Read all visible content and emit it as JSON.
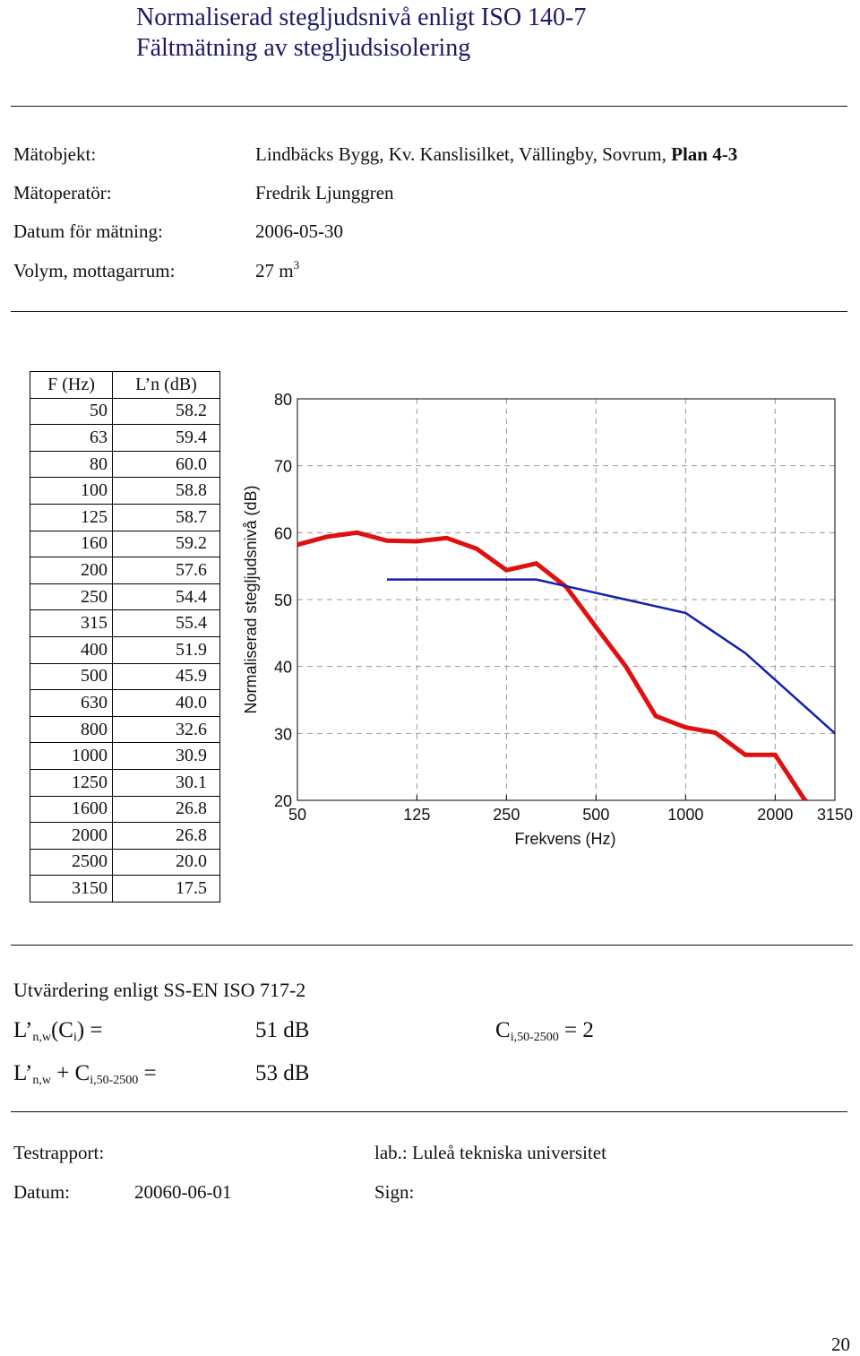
{
  "header": {
    "title_line1": "Normaliserad stegljudsnivå enligt ISO 140-7",
    "title_line2": "Fältmätning av stegljudsisolering"
  },
  "info": {
    "object_label": "Mätobjekt:",
    "object_value": "Lindbäcks Bygg, Kv. Kanslisilket, Vällingby, Sovrum,",
    "object_value_bold": "Plan 4-3",
    "operator_label": "Mätoperatör:",
    "operator_value": "Fredrik Ljunggren",
    "date_label": "Datum för mätning:",
    "date_value": "2006-05-30",
    "volume_label": "Volym, mottagarrum:",
    "volume_value": "27 m",
    "volume_exp": "3"
  },
  "table": {
    "col_freq": "F (Hz)",
    "col_level": "L’n (dB)",
    "rows": [
      {
        "f": "50",
        "l": "58.2"
      },
      {
        "f": "63",
        "l": "59.4"
      },
      {
        "f": "80",
        "l": "60.0"
      },
      {
        "f": "100",
        "l": "58.8"
      },
      {
        "f": "125",
        "l": "58.7"
      },
      {
        "f": "160",
        "l": "59.2"
      },
      {
        "f": "200",
        "l": "57.6"
      },
      {
        "f": "250",
        "l": "54.4"
      },
      {
        "f": "315",
        "l": "55.4"
      },
      {
        "f": "400",
        "l": "51.9"
      },
      {
        "f": "500",
        "l": "45.9"
      },
      {
        "f": "630",
        "l": "40.0"
      },
      {
        "f": "800",
        "l": "32.6"
      },
      {
        "f": "1000",
        "l": "30.9"
      },
      {
        "f": "1250",
        "l": "30.1"
      },
      {
        "f": "1600",
        "l": "26.8"
      },
      {
        "f": "2000",
        "l": "26.8"
      },
      {
        "f": "2500",
        "l": "20.0"
      },
      {
        "f": "3150",
        "l": "17.5"
      }
    ]
  },
  "chart_data": {
    "type": "line",
    "title": "",
    "xlabel": "Frekvens (Hz)",
    "ylabel": "Normaliserad stegljudsnivå (dB)",
    "x_categories": [
      "50",
      "63",
      "80",
      "100",
      "125",
      "160",
      "200",
      "250",
      "315",
      "400",
      "500",
      "630",
      "800",
      "1000",
      "1250",
      "1600",
      "2000",
      "2500",
      "3150"
    ],
    "x_tick_labels": [
      "50",
      "125",
      "250",
      "500",
      "1000",
      "2000",
      "3150"
    ],
    "y_ticks": [
      "20",
      "30",
      "40",
      "50",
      "60",
      "70",
      "80"
    ],
    "ylim": [
      20,
      80
    ],
    "grid": true,
    "series": [
      {
        "color": "#e01010",
        "values": [
          58.2,
          59.4,
          60.0,
          58.8,
          58.7,
          59.2,
          57.6,
          54.4,
          55.4,
          51.9,
          45.9,
          40.0,
          32.6,
          30.9,
          30.1,
          26.8,
          26.8,
          20.0,
          17.5
        ]
      },
      {
        "color": "#1020b0",
        "x_start_index": 3,
        "values": [
          53,
          53,
          53,
          53,
          53,
          53,
          52,
          51,
          50,
          49,
          48,
          45,
          42,
          38,
          34,
          30
        ]
      }
    ]
  },
  "evaluation": {
    "heading": "Utvärdering enligt SS-EN ISO 717-2",
    "row1_label_main": "L’",
    "row1_label_sub": "n,w",
    "row1_label_rest": "(C",
    "row1_label_sub2": "i",
    "row1_label_end": ") =",
    "row1_value": "51 dB",
    "ci_main": "C",
    "ci_sub": "i,50-2500",
    "ci_rest": " = 2",
    "row2_label_main": "L’",
    "row2_label_sub": "n,w",
    "row2_label_rest": " + C",
    "row2_label_sub2": "i,50-2500",
    "row2_label_end": " =",
    "row2_value": "53 dB"
  },
  "footer": {
    "report_label": "Testrapport:",
    "lab_text": "lab.: Luleå tekniska universitet",
    "date_label": "Datum:",
    "date_value": "20060-06-01",
    "sign_label": "Sign:",
    "page_number": "20"
  }
}
